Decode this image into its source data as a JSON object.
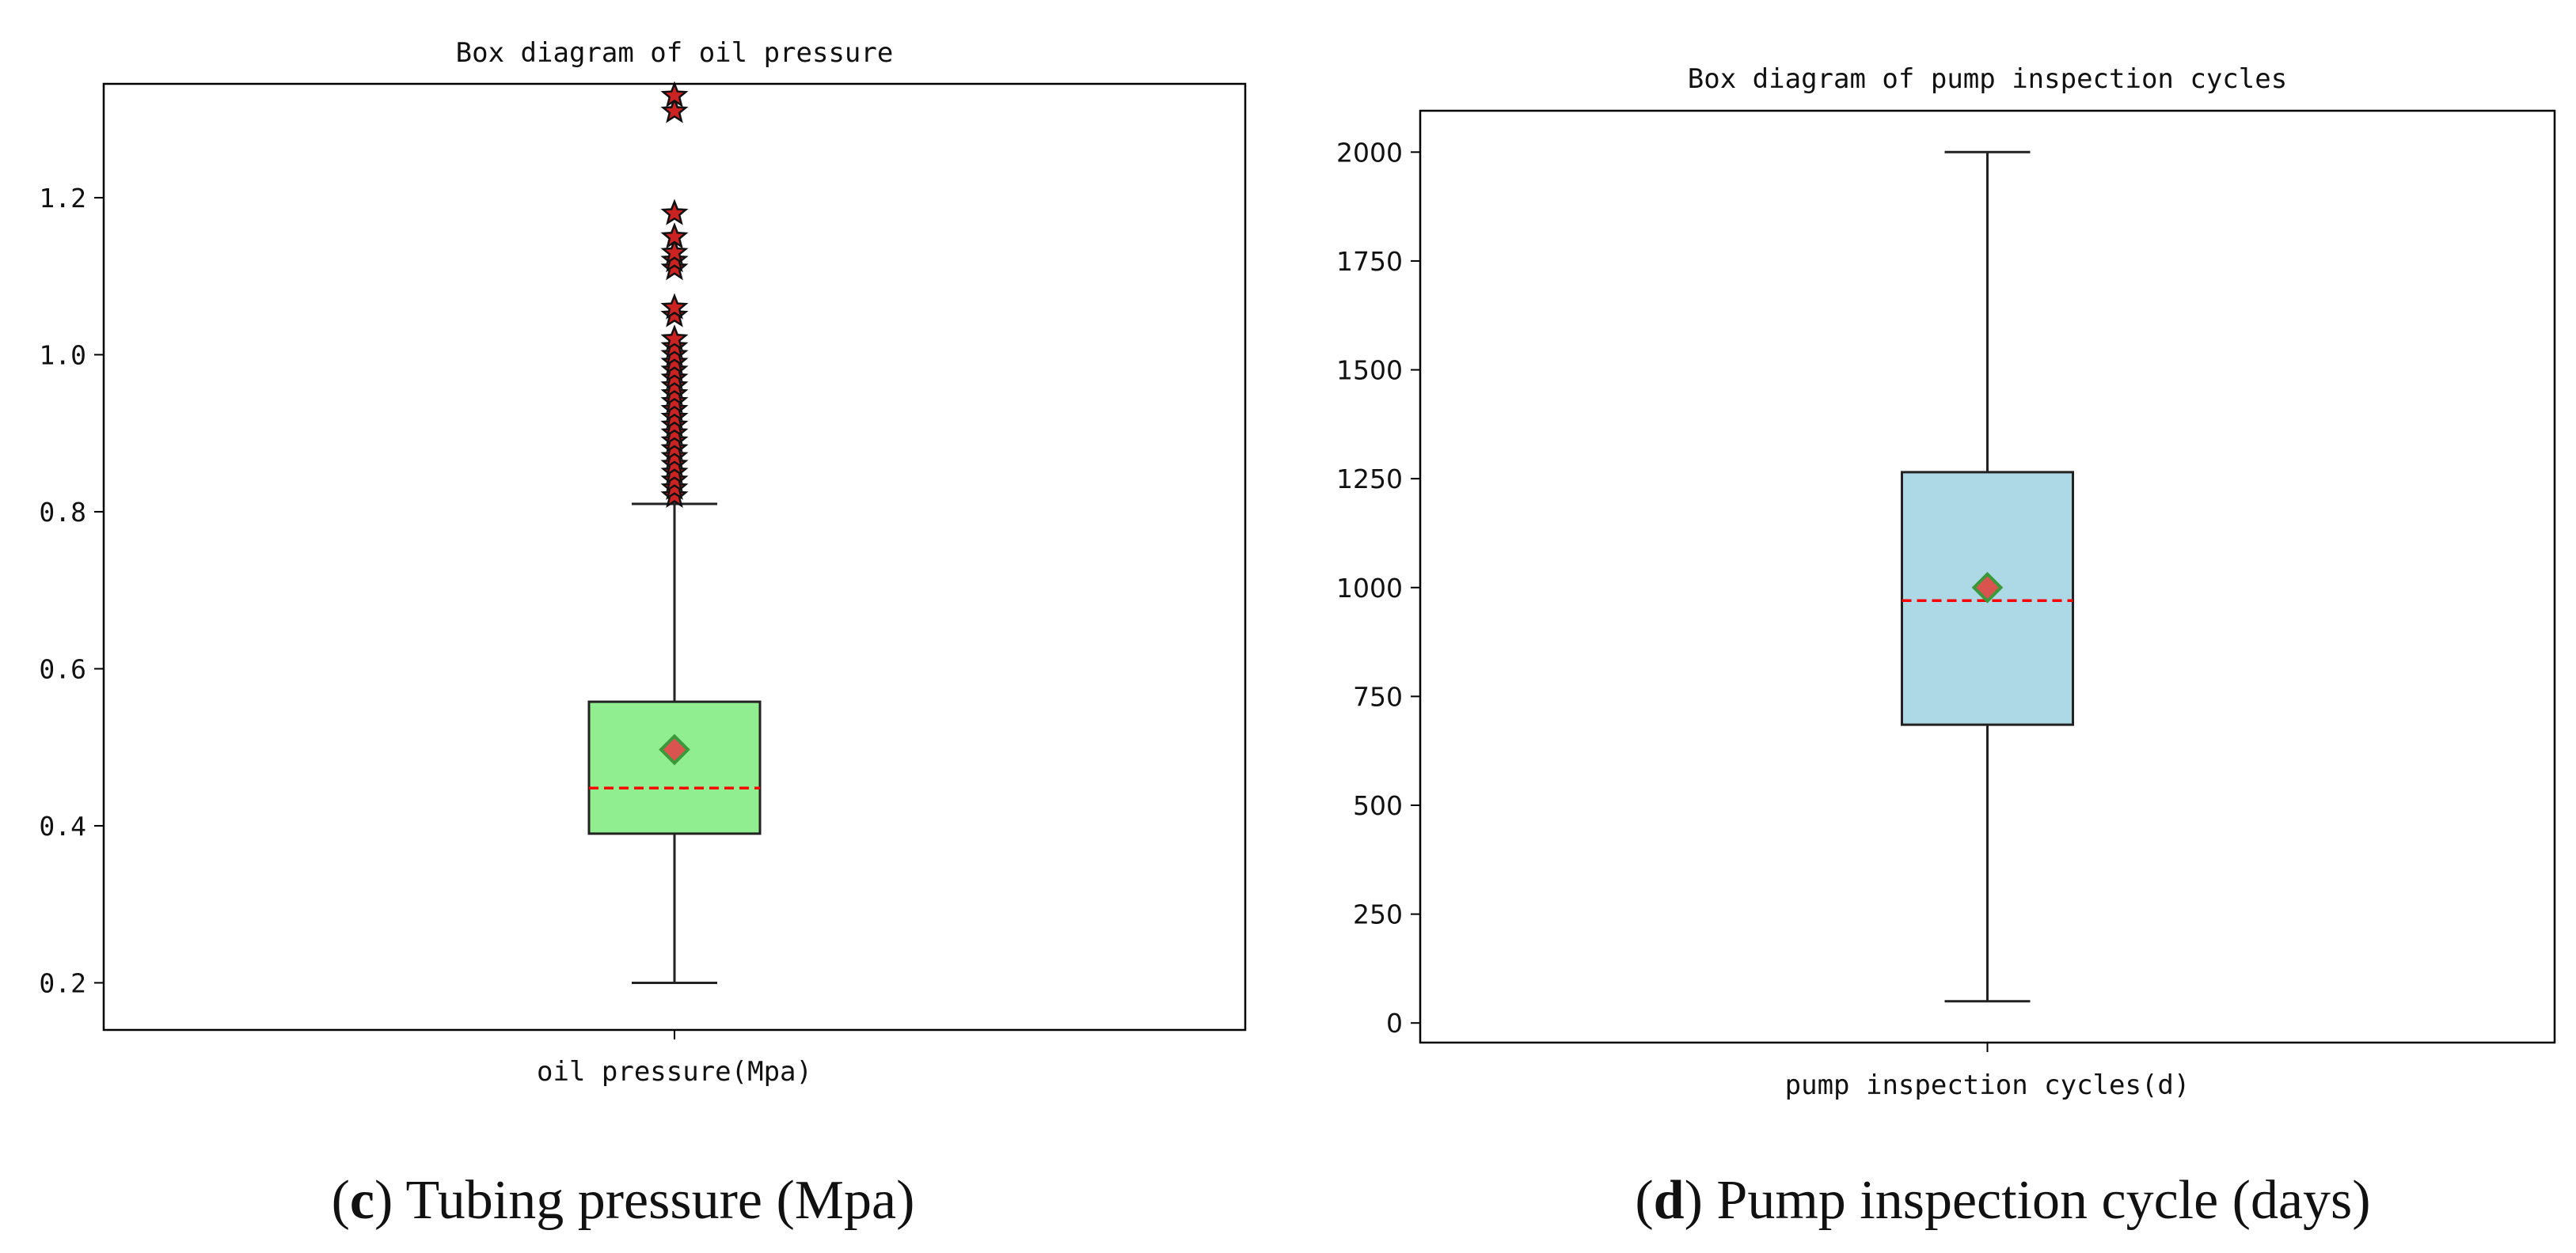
{
  "chart_data": [
    {
      "type": "box",
      "title": "Box diagram of oil pressure",
      "xlabel": "oil pressure(Mpa)",
      "ylabel": "",
      "ylim": [
        0.14,
        1.345
      ],
      "yticks": [
        0.2,
        0.4,
        0.6,
        0.8,
        1.0,
        1.2
      ],
      "ytick_labels": [
        "0.2",
        "0.4",
        "0.6",
        "0.8",
        "1.0",
        "1.2"
      ],
      "stats": {
        "whisker_low": 0.2,
        "q1": 0.39,
        "median": 0.448,
        "mean": 0.497,
        "q3": 0.558,
        "whisker_high": 0.81
      },
      "outliers": [
        0.82,
        0.83,
        0.84,
        0.85,
        0.86,
        0.87,
        0.88,
        0.89,
        0.9,
        0.91,
        0.92,
        0.93,
        0.94,
        0.95,
        0.96,
        0.97,
        0.98,
        0.99,
        1.0,
        1.01,
        1.02,
        1.05,
        1.06,
        1.11,
        1.12,
        1.13,
        1.15,
        1.18,
        1.31,
        1.33
      ],
      "box_color": "#90EE90",
      "median_color": "#ff0000",
      "mean_marker_color": "#d9534f",
      "mean_marker_edge": "#3a9a3a",
      "outlier_marker": "star",
      "outlier_color": "#cc2222",
      "caption_letter": "c",
      "caption_text": ") Tubing pressure (Mpa)"
    },
    {
      "type": "box",
      "title": "Box diagram of pump inspection cycles",
      "xlabel": "pump inspection cycles(d)",
      "ylabel": "",
      "ylim": [
        -45,
        2095
      ],
      "yticks": [
        0,
        250,
        500,
        750,
        1000,
        1250,
        1500,
        1750,
        2000
      ],
      "ytick_labels": [
        "0",
        "250",
        "500",
        "750",
        "1000",
        "1250",
        "1500",
        "1750",
        "2000"
      ],
      "stats": {
        "whisker_low": 50,
        "q1": 685,
        "median": 970,
        "mean": 1000,
        "q3": 1265,
        "whisker_high": 2000
      },
      "outliers": [],
      "box_color": "#ADD8E6",
      "median_color": "#ff0000",
      "mean_marker_color": "#d9534f",
      "mean_marker_edge": "#3a9a3a",
      "outlier_marker": "star",
      "outlier_color": "#cc2222",
      "caption_letter": "d",
      "caption_text": ") Pump inspection cycle (days)"
    }
  ]
}
